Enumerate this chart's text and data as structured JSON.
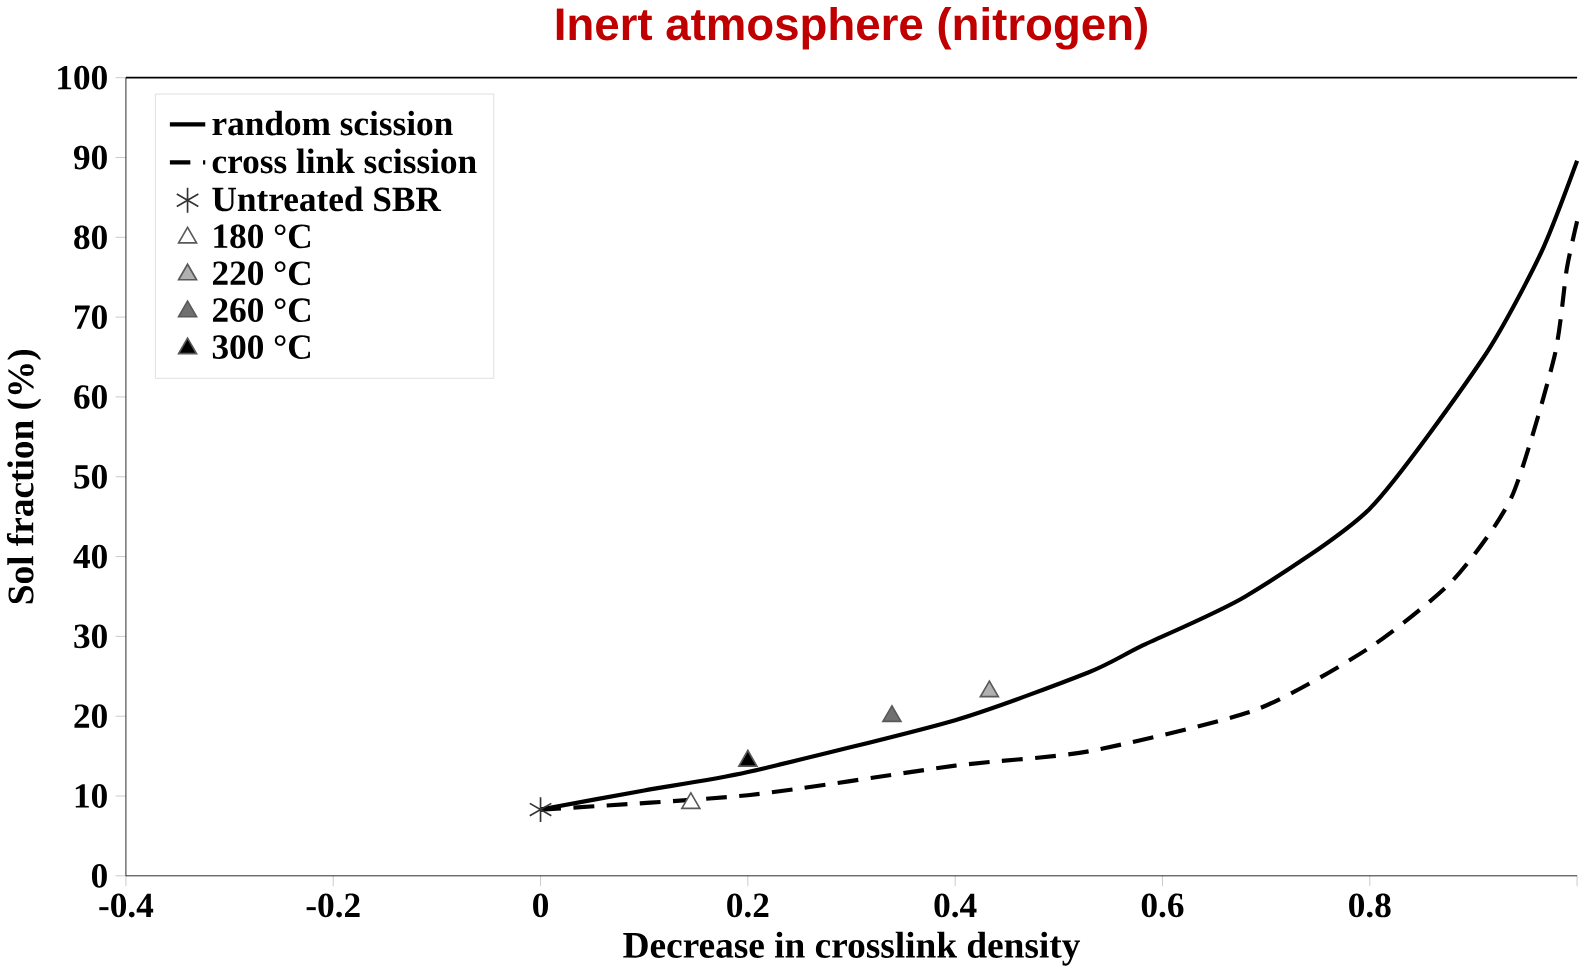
{
  "chart_data": {
    "type": "scatter",
    "title": "Inert atmosphere (nitrogen)",
    "xlabel": "Decrease in crosslink density",
    "ylabel": "Sol fraction (%)",
    "xlim": [
      -0.4,
      1
    ],
    "ylim": [
      0,
      100
    ],
    "xticks": [
      -0.4,
      -0.2,
      0,
      0.2,
      0.4,
      0.6,
      0.8,
      {
        "value": 1,
        "label": null
      }
    ],
    "yticks": [
      0,
      10,
      20,
      30,
      40,
      50,
      60,
      70,
      80,
      90,
      100
    ],
    "legend": "top left",
    "grid": false,
    "series": [
      {
        "name": "random scission",
        "type": "line",
        "line_style": "solid",
        "marker": "none",
        "color": "#000000",
        "x": [
          0,
          0.1,
          0.2,
          0.4,
          0.529,
          0.58,
          0.68,
          0.8,
          0.91,
          0.965,
          1.0
        ],
        "values": [
          8.3,
          10.7,
          13,
          19.5,
          25.5,
          28.8,
          35,
          46,
          65,
          78,
          89.6
        ]
      },
      {
        "name": "cross link scission",
        "type": "line",
        "line_style": "dashed",
        "marker": "none",
        "color": "#000000",
        "x": [
          0,
          0.2,
          0.4,
          0.529,
          0.69,
          0.8,
          0.88,
          0.937,
          0.978,
          0.99,
          1.0
        ],
        "values": [
          8.3,
          10.1,
          13.8,
          15.6,
          20.8,
          28.6,
          37,
          47.5,
          65,
          76,
          82
        ]
      },
      {
        "name": "Untreated SBR",
        "marker": "cross",
        "color": "#333333",
        "x": [
          0
        ],
        "values": [
          8.3
        ]
      },
      {
        "name": "180 °C",
        "marker": "triangle",
        "color": "#ffffff",
        "x": [
          0.145
        ],
        "values": [
          9.1
        ]
      },
      {
        "name": "220 °C",
        "marker": "triangle",
        "color": "#b0b0b0",
        "x": [
          0.433
        ],
        "values": [
          23.1
        ]
      },
      {
        "name": "260 °C",
        "marker": "triangle",
        "color": "#707070",
        "x": [
          0.339
        ],
        "values": [
          20
        ]
      },
      {
        "name": "300 °C",
        "marker": "triangle",
        "color": "#000000",
        "x": [
          0.2
        ],
        "values": [
          14.4
        ]
      }
    ]
  }
}
